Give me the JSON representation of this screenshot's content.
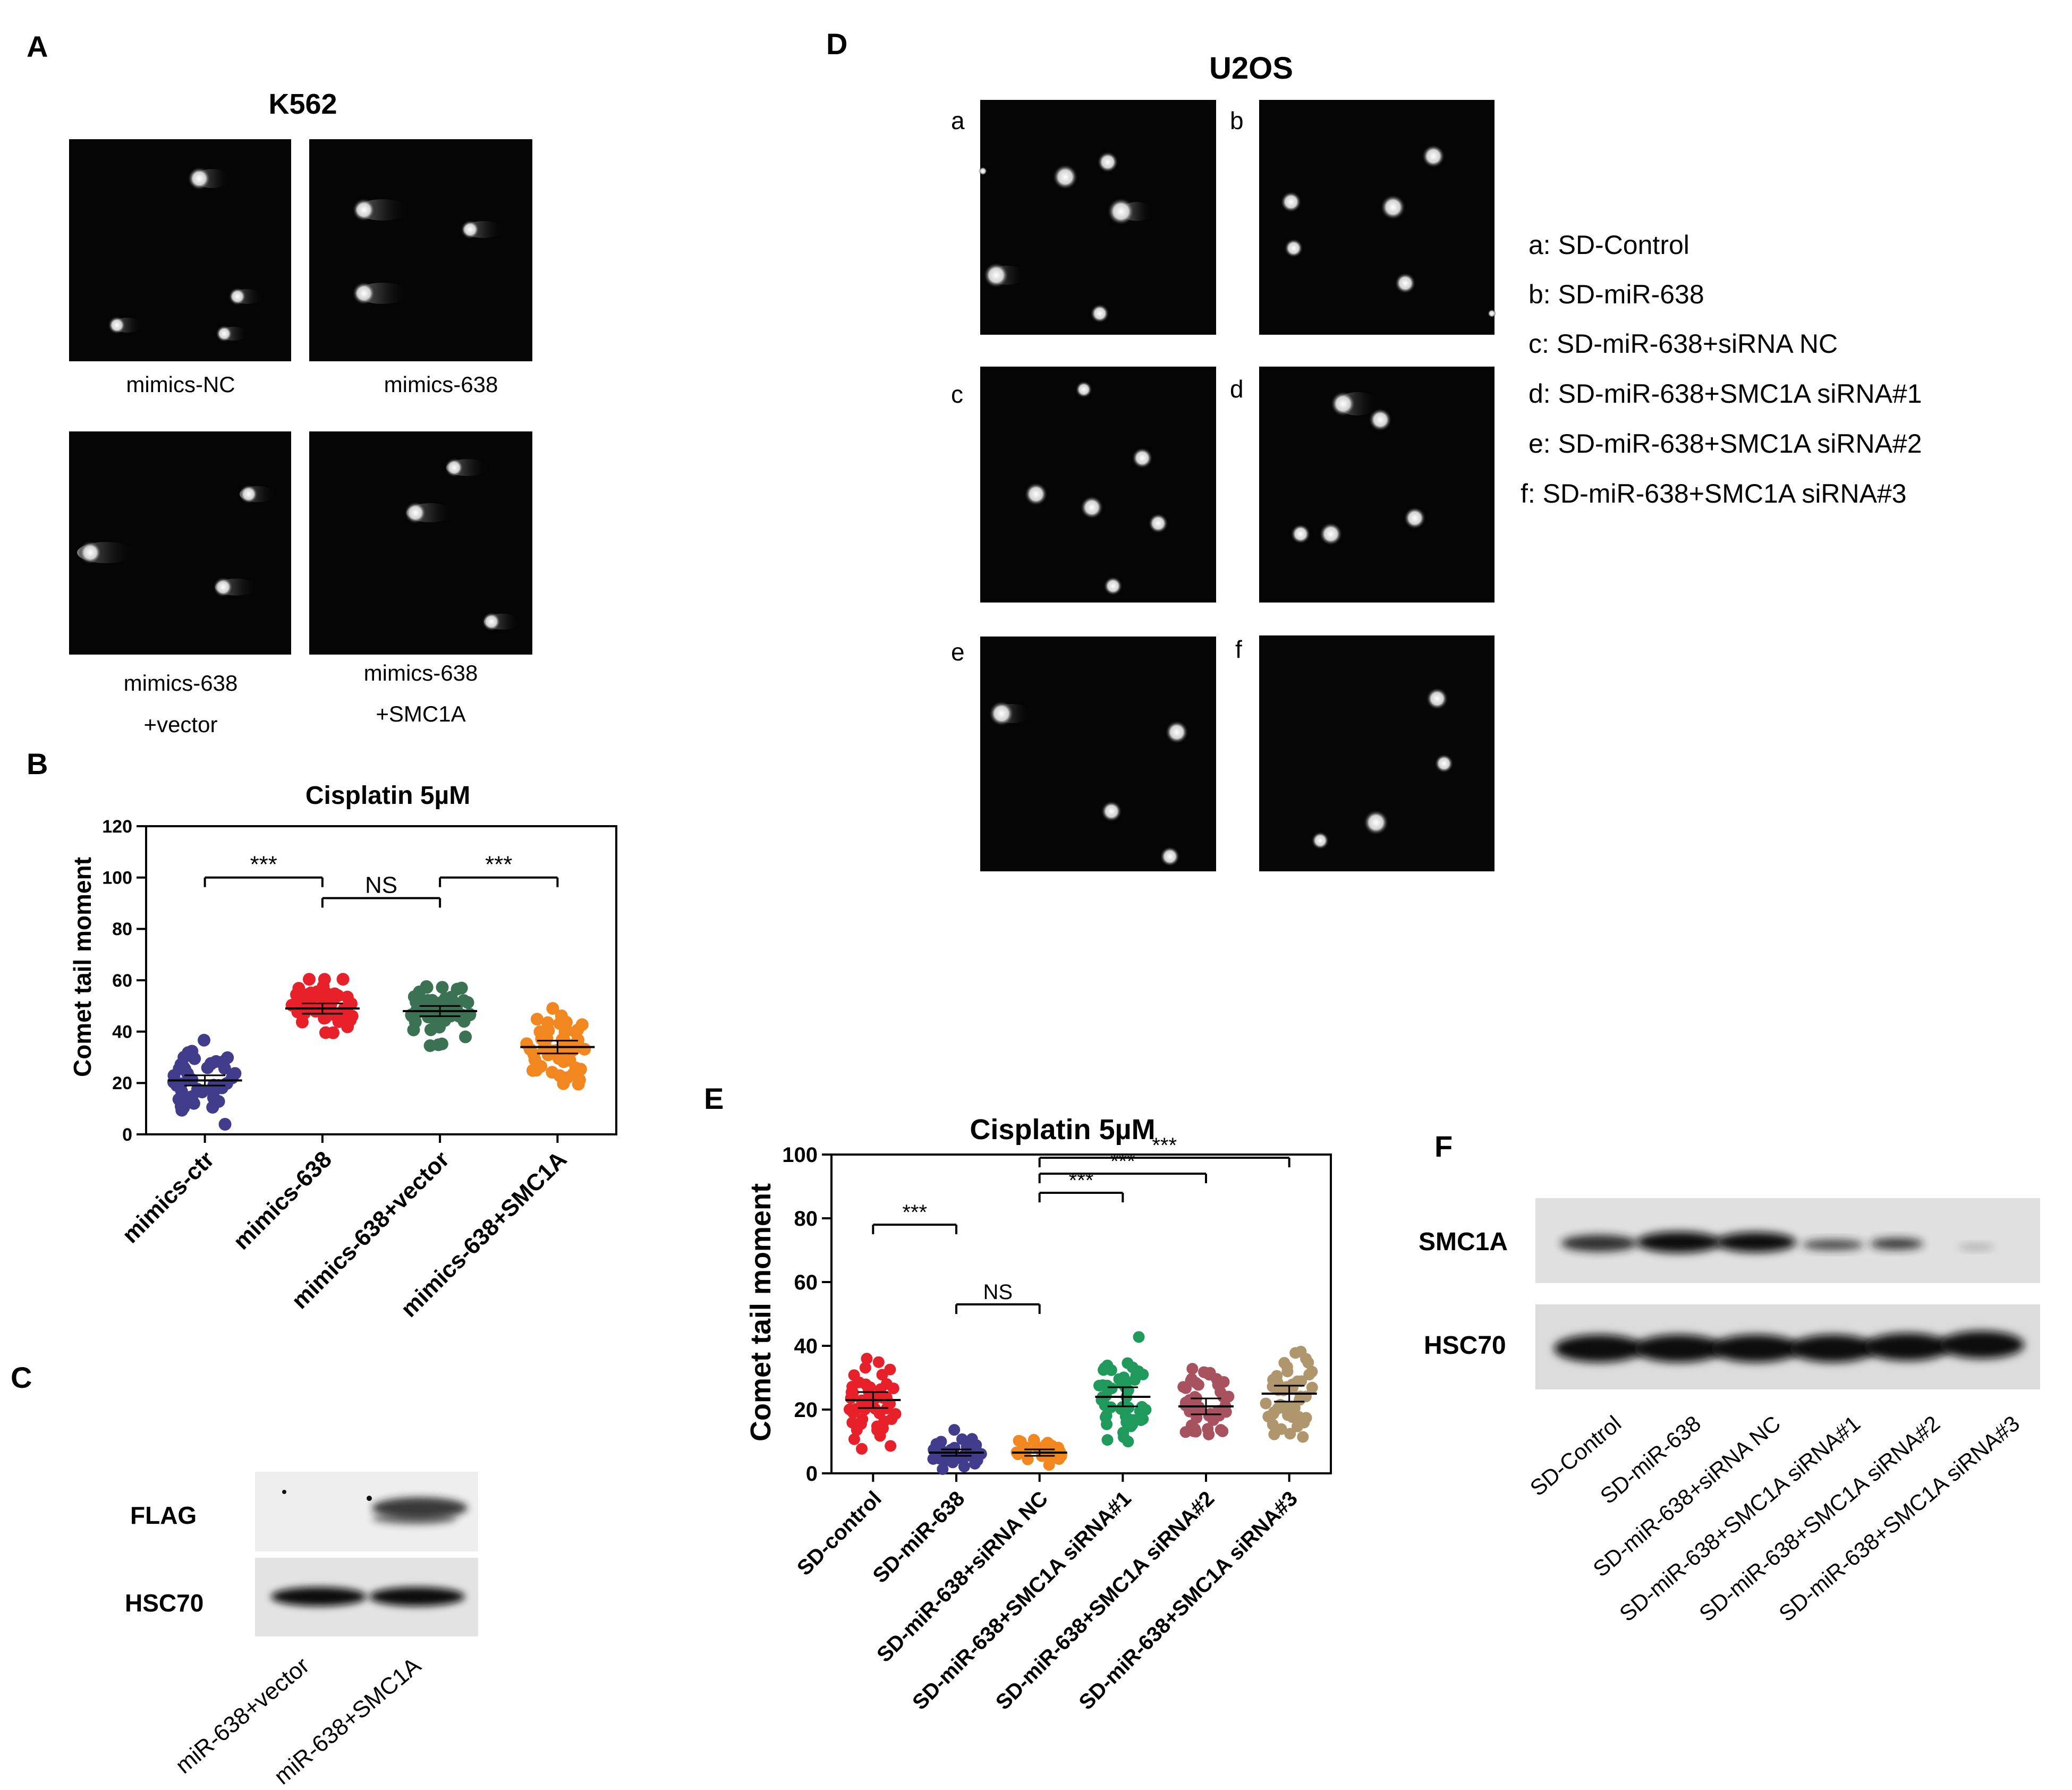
{
  "panelA": {
    "label": "A",
    "title": "K562",
    "captions": [
      "mimics-NC",
      "mimics-638",
      "mimics-638",
      "+vector",
      "mimics-638",
      "+SMC1A"
    ]
  },
  "panelB": {
    "label": "B",
    "chart_data": {
      "type": "scatter",
      "title": "Cisplatin 5µM",
      "ylabel": "Comet tail moment",
      "ylim": [
        0,
        120
      ],
      "yticks": [
        "0",
        "20",
        "40",
        "60",
        "80",
        "100",
        "120"
      ],
      "categories": [
        "mimics-ctr",
        "mimics-638",
        "mimics-638+vector",
        "mimics-638+SMC1A"
      ],
      "colors": [
        "#413d8c",
        "#e8202a",
        "#3a7253",
        "#f2871f"
      ],
      "means": [
        21,
        49,
        48,
        34
      ],
      "sems": [
        2,
        2,
        2,
        2.5
      ],
      "significance": [
        {
          "from": 0,
          "to": 1,
          "label": "***",
          "y": 100
        },
        {
          "from": 1,
          "to": 2,
          "label": "NS",
          "y": 92
        },
        {
          "from": 2,
          "to": 3,
          "label": "***",
          "y": 100
        }
      ]
    }
  },
  "panelC": {
    "label": "C",
    "rows": [
      "FLAG",
      "HSC70"
    ],
    "lanes": [
      "miR-638+vector",
      "miR-638+SMC1A"
    ]
  },
  "panelD": {
    "label": "D",
    "title": "U2OS",
    "sublabels": [
      "a",
      "b",
      "c",
      "d",
      "e",
      "f"
    ],
    "legend": [
      "a: SD-Control",
      "b: SD-miR-638",
      "c: SD-miR-638+siRNA NC",
      "d: SD-miR-638+SMC1A siRNA#1",
      "e: SD-miR-638+SMC1A siRNA#2",
      "f: SD-miR-638+SMC1A siRNA#3"
    ]
  },
  "panelE": {
    "label": "E",
    "chart_data": {
      "type": "scatter",
      "title": "Cisplatin 5µM",
      "ylabel": "Comet tail moment",
      "ylim": [
        0,
        100
      ],
      "yticks": [
        "0",
        "20",
        "40",
        "60",
        "80",
        "100"
      ],
      "categories": [
        "SD-control",
        "SD-miR-638",
        "SD-miR-638+siRNA NC",
        "SD-miR-638+SMC1A siRNA#1",
        "SD-miR-638+SMC1A siRNA#2",
        "SD-miR-638+SMC1A siRNA#3"
      ],
      "colors": [
        "#e8202a",
        "#413d8c",
        "#f2871f",
        "#1f9a5c",
        "#a8525f",
        "#b0966c"
      ],
      "means": [
        23,
        6.5,
        6.5,
        24,
        21,
        25
      ],
      "sems": [
        2.5,
        1,
        1,
        3,
        2.5,
        2.5
      ],
      "significance": [
        {
          "from": 0,
          "to": 1,
          "label": "***",
          "y": 78
        },
        {
          "from": 1,
          "to": 2,
          "label": "NS",
          "y": 53
        },
        {
          "from": 2,
          "to": 3,
          "label": "***",
          "y": 88
        },
        {
          "from": 2,
          "to": 4,
          "label": "***",
          "y": 94
        },
        {
          "from": 2,
          "to": 5,
          "label": "***",
          "y": 99
        }
      ]
    }
  },
  "panelF": {
    "label": "F",
    "rows": [
      "SMC1A",
      "HSC70"
    ],
    "lanes": [
      "SD-Control",
      "SD-miR-638",
      "SD-miR-638+siRNA NC",
      "SD-miR-638+SMC1A siRNA#1",
      "SD-miR-638+SMC1A siRNA#2",
      "SD-miR-638+SMC1A siRNA#3"
    ]
  }
}
